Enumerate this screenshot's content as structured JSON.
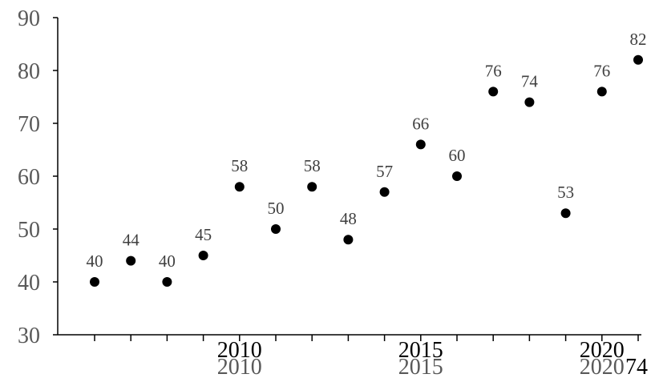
{
  "chart_data": {
    "type": "scatter",
    "title": "",
    "xlabel": "",
    "ylabel": "",
    "xlim": [
      2005,
      2021
    ],
    "ylim": [
      30,
      90
    ],
    "yticks": [
      30,
      40,
      50,
      60,
      70,
      80,
      90
    ],
    "ytick_labels": [
      "30",
      "40",
      "50",
      "60",
      "70",
      "80",
      "90"
    ],
    "xtick_labels_primary": [
      "2010",
      "2015",
      "2020"
    ],
    "xtick_labels_secondary": [
      "2010",
      "2015",
      "2020",
      "74"
    ],
    "grid": false,
    "legend": "none",
    "marker_color": "#000000",
    "points": [
      {
        "x": 2006,
        "y": 40,
        "label": "40"
      },
      {
        "x": 2007,
        "y": 44,
        "label": "44"
      },
      {
        "x": 2008,
        "y": 40,
        "label": "40"
      },
      {
        "x": 2009,
        "y": 45,
        "label": "45"
      },
      {
        "x": 2010,
        "y": 58,
        "label": "58"
      },
      {
        "x": 2011,
        "y": 50,
        "label": "50"
      },
      {
        "x": 2012,
        "y": 58,
        "label": "58"
      },
      {
        "x": 2013,
        "y": 48,
        "label": "48"
      },
      {
        "x": 2014,
        "y": 57,
        "label": "57"
      },
      {
        "x": 2015,
        "y": 66,
        "label": "66"
      },
      {
        "x": 2016,
        "y": 60,
        "label": "60"
      },
      {
        "x": 2017,
        "y": 76,
        "label": "76"
      },
      {
        "x": 2018,
        "y": 74,
        "label": "74"
      },
      {
        "x": 2019,
        "y": 53,
        "label": "53"
      },
      {
        "x": 2020,
        "y": 76,
        "label": "76"
      },
      {
        "x": 2021,
        "y": 82,
        "label": "82"
      }
    ]
  }
}
